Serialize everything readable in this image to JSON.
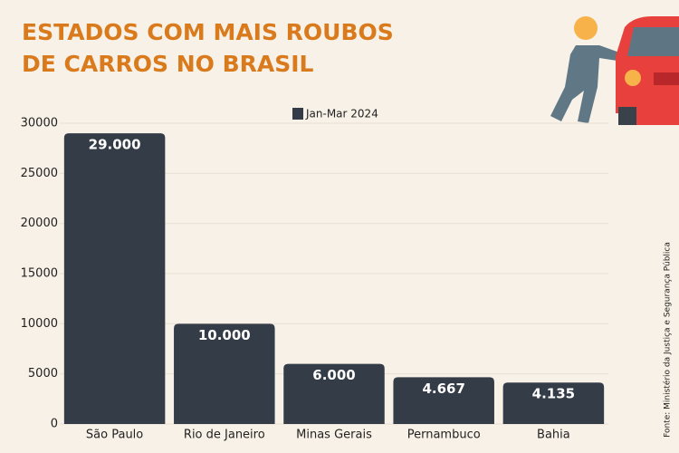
{
  "chart_data": {
    "type": "bar",
    "title": [
      "ESTADOS COM MAIS ROUBOS",
      "DE CARROS NO BRASIL"
    ],
    "source": "Fonte: Ministério da Justiça e Segurança Pública",
    "categories": [
      "São Paulo",
      "Rio de Janeiro",
      "Minas Gerais",
      "Pernambuco",
      "Bahia"
    ],
    "series": [
      {
        "name": "Jan-Mar 2024",
        "color": "#343d47",
        "values": [
          29000,
          10000,
          6000,
          4667,
          4135
        ],
        "value_labels": [
          "29.000",
          "10.000",
          "6.000",
          "4.667",
          "4.135"
        ]
      }
    ],
    "ylim": [
      0,
      30000
    ],
    "yticks": [
      0,
      5000,
      10000,
      15000,
      20000,
      25000,
      30000
    ],
    "grid": true
  }
}
